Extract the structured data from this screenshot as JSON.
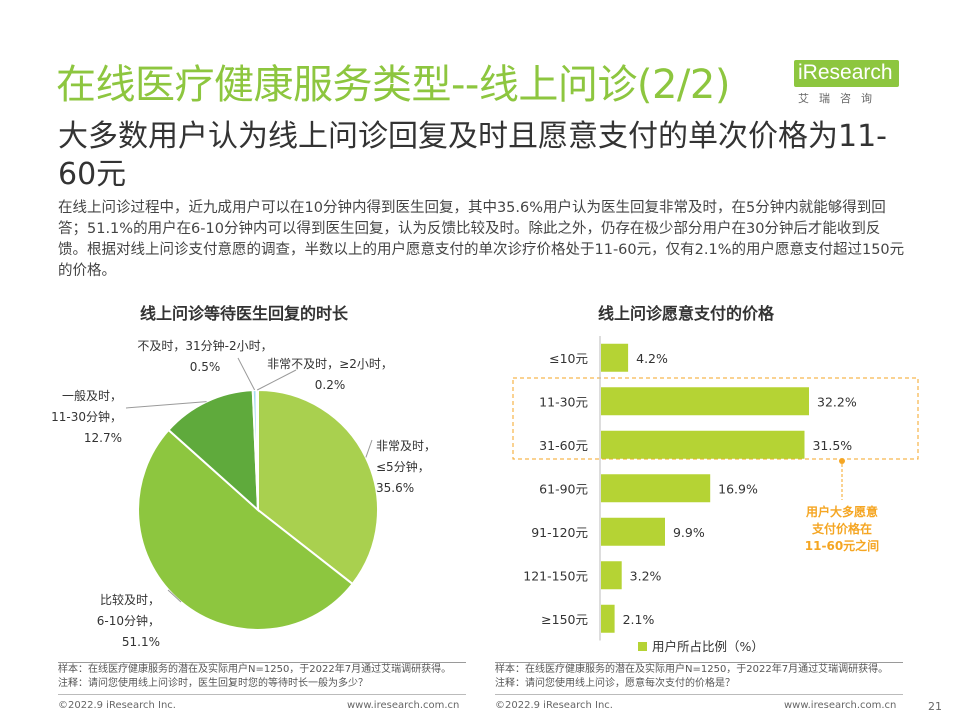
{
  "header": {
    "title": "在线医疗健康服务类型--线上问诊(2/2)",
    "subtitle": "大多数用户认为线上问诊回复及时且愿意支付的单次价格为11-60元",
    "body": "在线上问诊过程中，近九成用户可以在10分钟内得到医生回复，其中35.6%用户认为医生回复非常及时，在5分钟内就能够得到回答；51.1%的用户在6-10分钟内可以得到医生回复，认为反馈比较及时。除此之外，仍存在极少部分用户在30分钟后才能收到反馈。根据对线上问诊支付意愿的调查，半数以上的用户愿意支付的单次诊疗价格处于11-60元，仅有2.1%的用户愿意支付超过150元的价格。"
  },
  "logo": {
    "main": "iResearch",
    "sub": "艾瑞咨询"
  },
  "chart_data": [
    {
      "type": "pie",
      "title": "线上问诊等待医生回复的时长",
      "slices": [
        {
          "label": "非常及时，≤5分钟",
          "lines": [
            "非常及时，",
            "≤5分钟，",
            "35.6%"
          ],
          "value": 35.6,
          "color": "#a9d04f"
        },
        {
          "label": "比较及时，6-10分钟",
          "lines": [
            "比较及时，",
            "6-10分钟，",
            "51.1%"
          ],
          "value": 51.1,
          "color": "#8dc63f"
        },
        {
          "label": "一般及时，11-30分钟",
          "lines": [
            "一般及时，",
            "11-30分钟，",
            "12.7%"
          ],
          "value": 12.7,
          "color": "#5faa3c"
        },
        {
          "label": "不及时，31分钟-2小时",
          "lines": [
            "不及时，31分钟-2小时，",
            "0.5%"
          ],
          "value": 0.5,
          "color": "#a6dcef"
        },
        {
          "label": "非常不及时，≥2小时",
          "lines": [
            "非常不及时，≥2小时，",
            "0.2%"
          ],
          "value": 0.2,
          "color": "#3b9ad9"
        }
      ]
    },
    {
      "type": "bar",
      "orientation": "horizontal",
      "title": "线上问诊愿意支付的价格",
      "categories": [
        "≤10元",
        "11-30元",
        "31-60元",
        "61-90元",
        "91-120元",
        "121-150元",
        "≥150元"
      ],
      "values": [
        4.2,
        32.2,
        31.5,
        16.9,
        9.9,
        3.2,
        2.1
      ],
      "value_labels": [
        "4.2%",
        "32.2%",
        "31.5%",
        "16.9%",
        "9.9%",
        "3.2%",
        "2.1%"
      ],
      "legend": "用户所占比例（%）",
      "color": "#b5d334",
      "callout": [
        "用户大多愿意",
        "支付价格在",
        "11-60元之间"
      ],
      "callout_color": "#f5a623"
    }
  ],
  "notes": {
    "left": [
      "样本：在线医疗健康服务的潜在及实际用户N=1250，于2022年7月通过艾瑞调研获得。",
      "注释：请问您使用线上问诊时，医生回复时您的等待时长一般为多少？"
    ],
    "right": [
      "样本：在线医疗健康服务的潜在及实际用户N=1250，于2022年7月通过艾瑞调研获得。",
      "注释：请问您使用线上问诊，愿意每次支付的价格是？"
    ]
  },
  "footer": {
    "left_copyright": "©2022.9 iResearch Inc.",
    "left_url": "www.iresearch.com.cn",
    "right_copyright": "©2022.9 iResearch Inc.",
    "right_url": "www.iresearch.com.cn",
    "page": "21"
  }
}
